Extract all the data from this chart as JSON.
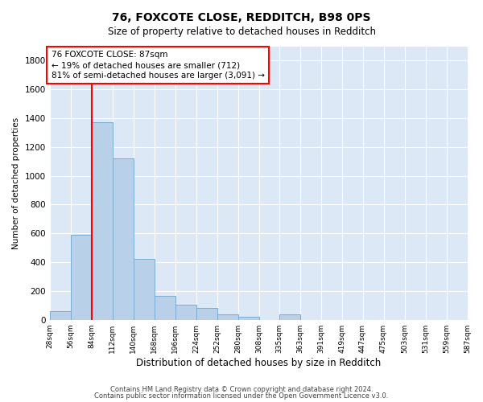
{
  "title": "76, FOXCOTE CLOSE, REDDITCH, B98 0PS",
  "subtitle": "Size of property relative to detached houses in Redditch",
  "xlabel": "Distribution of detached houses by size in Redditch",
  "ylabel": "Number of detached properties",
  "bar_color": "#b8d0e8",
  "bar_edge_color": "#7aadd4",
  "background_color": "#dce8f5",
  "grid_color": "white",
  "property_line_x": 84,
  "annotation_text": "76 FOXCOTE CLOSE: 87sqm\n← 19% of detached houses are smaller (712)\n81% of semi-detached houses are larger (3,091) →",
  "footnote1": "Contains HM Land Registry data © Crown copyright and database right 2024.",
  "footnote2": "Contains public sector information licensed under the Open Government Licence v3.0.",
  "bin_edges": [
    28,
    56,
    84,
    112,
    140,
    168,
    196,
    224,
    252,
    280,
    308,
    335,
    363,
    391,
    419,
    447,
    475,
    503,
    531,
    559,
    587
  ],
  "bin_heights": [
    60,
    590,
    1370,
    1120,
    425,
    165,
    105,
    80,
    35,
    18,
    0,
    35,
    0,
    0,
    0,
    0,
    0,
    0,
    0,
    0
  ],
  "ylim": [
    0,
    1900
  ],
  "yticks": [
    0,
    200,
    400,
    600,
    800,
    1000,
    1200,
    1400,
    1600,
    1800
  ],
  "xtick_labels": [
    "28sqm",
    "56sqm",
    "84sqm",
    "112sqm",
    "140sqm",
    "168sqm",
    "196sqm",
    "224sqm",
    "252sqm",
    "280sqm",
    "308sqm",
    "335sqm",
    "363sqm",
    "391sqm",
    "419sqm",
    "447sqm",
    "475sqm",
    "503sqm",
    "531sqm",
    "559sqm",
    "587sqm"
  ]
}
